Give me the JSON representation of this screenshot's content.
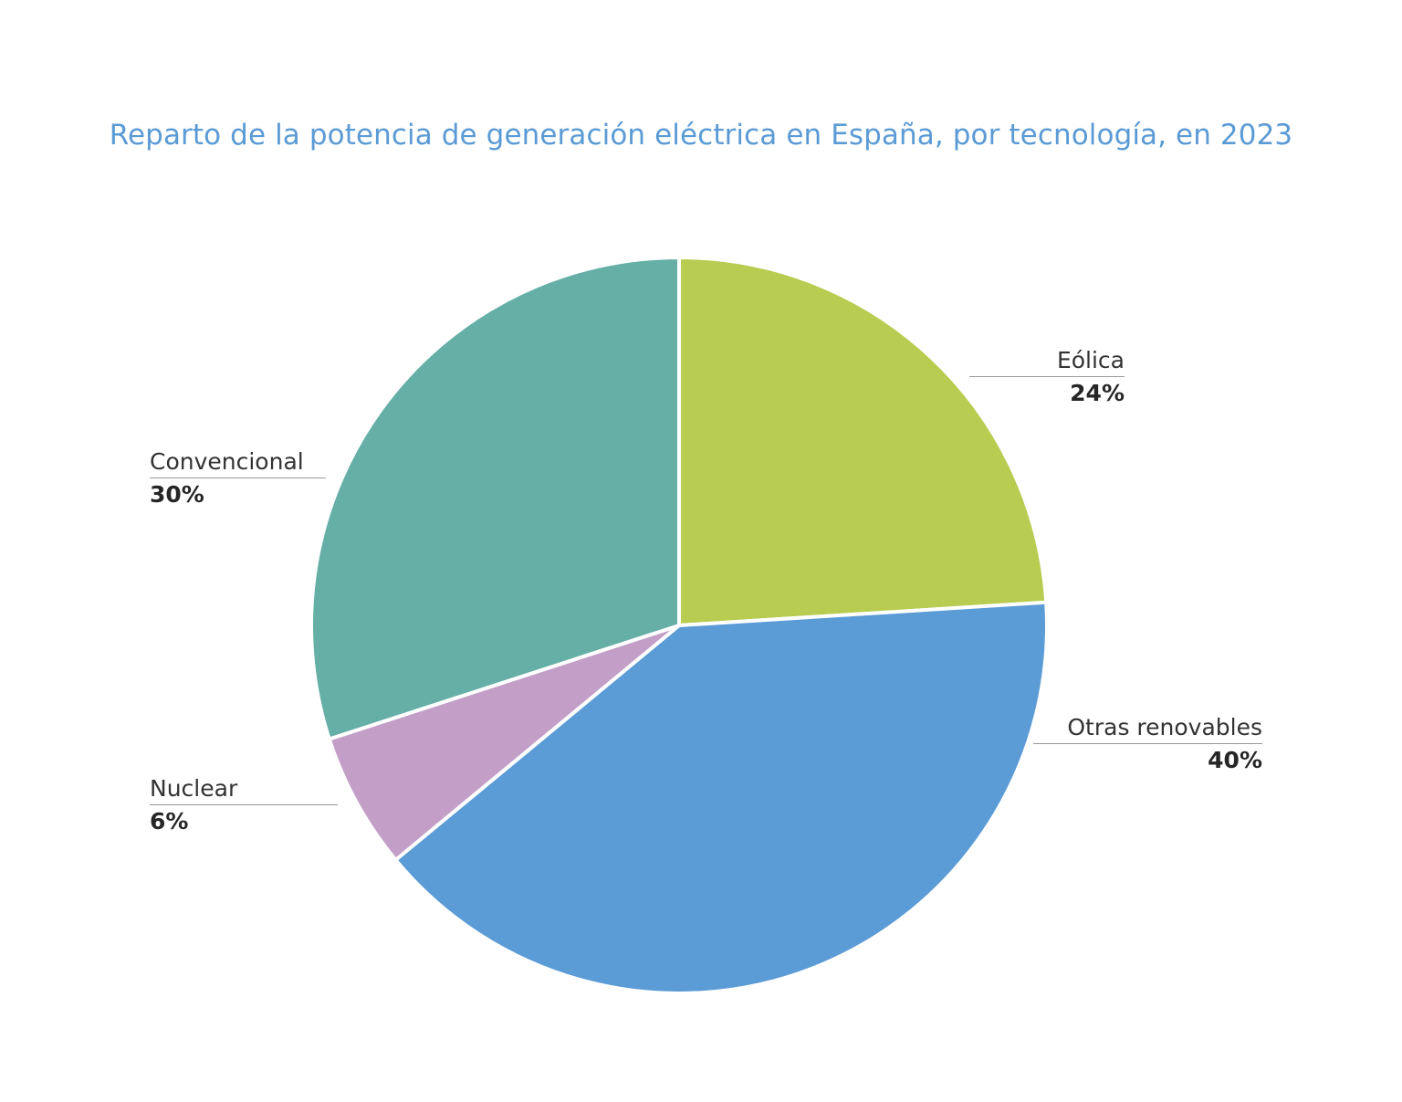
{
  "chart_data": {
    "type": "pie",
    "title": "Reparto de la potencia de generación eléctrica en España, por tecnología, en 2023",
    "slices": [
      {
        "name": "Eólica",
        "value": 24,
        "label": "24%",
        "color": "#b7cc50"
      },
      {
        "name": "Otras renovables",
        "value": 40,
        "label": "40%",
        "color": "#5b9bd6"
      },
      {
        "name": "Nuclear",
        "value": 6,
        "label": "6%",
        "color": "#c39fc8"
      },
      {
        "name": "Convencional",
        "value": 30,
        "label": "30%",
        "color": "#66afa7"
      }
    ],
    "start_angle_deg": 0,
    "direction": "clockwise",
    "legend": "none",
    "title_color": "#5b9bd5"
  }
}
